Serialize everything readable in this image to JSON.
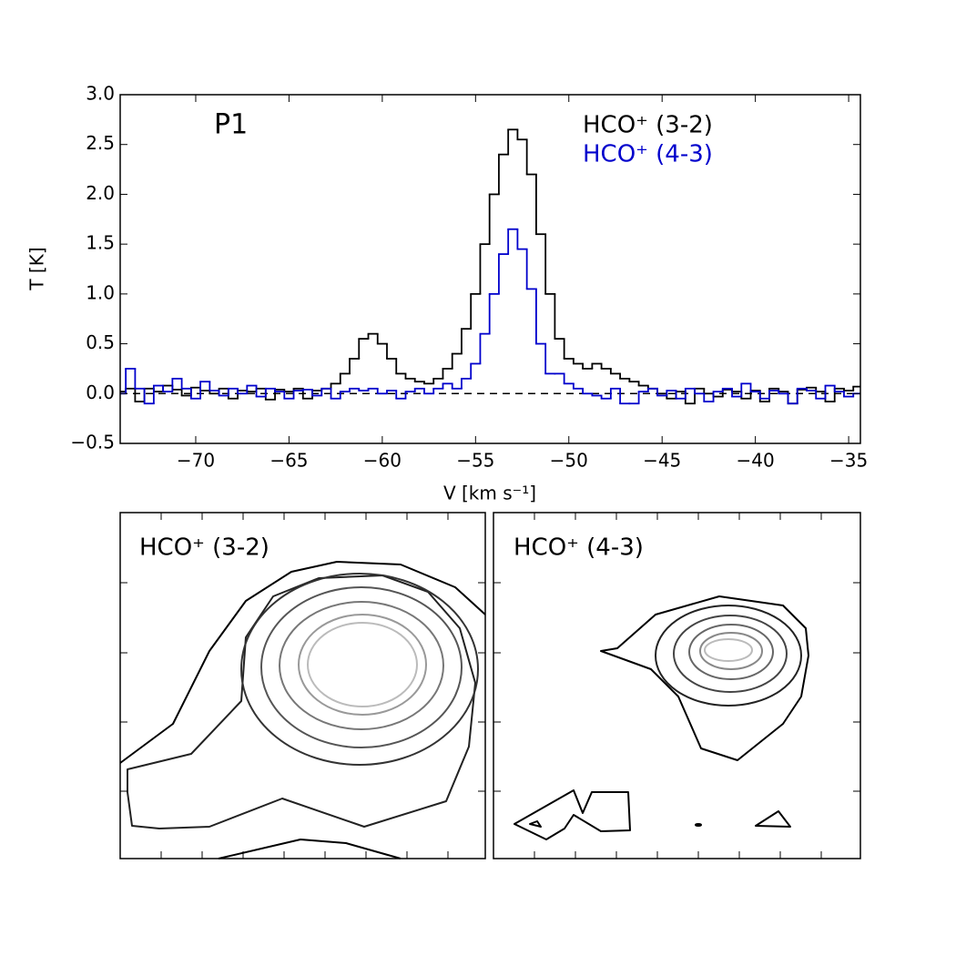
{
  "chart_data": [
    {
      "type": "step",
      "annotation": "P1",
      "xlabel": "V [km s⁻¹]",
      "ylabel": "T [K]",
      "xlim": [
        -74.05,
        -34.37
      ],
      "ylim": [
        -0.5,
        3.0
      ],
      "xticks": [
        {
          "value": -70,
          "label": "−70"
        },
        {
          "value": -65,
          "label": "−65"
        },
        {
          "value": -60,
          "label": "−60"
        },
        {
          "value": -55,
          "label": "−55"
        },
        {
          "value": -50,
          "label": "−50"
        },
        {
          "value": -45,
          "label": "−45"
        },
        {
          "value": -40,
          "label": "−40"
        },
        {
          "value": -35,
          "label": "−35"
        }
      ],
      "yticks": [
        {
          "value": -0.5,
          "label": "−0.5"
        },
        {
          "value": 0,
          "label": "0.0"
        },
        {
          "value": 0.5,
          "label": "0.5"
        },
        {
          "value": 1,
          "label": "1.0"
        },
        {
          "value": 1.5,
          "label": "1.5"
        },
        {
          "value": 2,
          "label": "2.0"
        },
        {
          "value": 2.5,
          "label": "2.5"
        },
        {
          "value": 3,
          "label": "3.0"
        }
      ],
      "reference_line": 0,
      "legend": "upper right",
      "x": [
        -74,
        -73.5,
        -73,
        -72.5,
        -72,
        -71.5,
        -71,
        -70.5,
        -70,
        -69.5,
        -69,
        -68.5,
        -68,
        -67.5,
        -67,
        -66.5,
        -66,
        -65.5,
        -65,
        -64.5,
        -64,
        -63.5,
        -63,
        -62.5,
        -62,
        -61.5,
        -61,
        -60.5,
        -60,
        -59.5,
        -59,
        -58.5,
        -58,
        -57.5,
        -57,
        -56.5,
        -56,
        -55.5,
        -55,
        -54.5,
        -54,
        -53.5,
        -53,
        -52.5,
        -52,
        -51.5,
        -51,
        -50.5,
        -50,
        -49.5,
        -49,
        -48.5,
        -48,
        -47.5,
        -47,
        -46.5,
        -46,
        -45.5,
        -45,
        -44.5,
        -44,
        -43.5,
        -43,
        -42.5,
        -42,
        -41.5,
        -41,
        -40.5,
        -40,
        -39.5,
        -39,
        -38.5,
        -38,
        -37.5,
        -37,
        -36.5,
        -36,
        -35.5,
        -35,
        -34.5
      ],
      "series": [
        {
          "name": "HCO⁺ (3-2)",
          "color": "#000000",
          "values": [
            0.02,
            0.05,
            -0.08,
            0.05,
            0.02,
            0.08,
            0.04,
            -0.02,
            0.06,
            0.03,
            0.0,
            0.05,
            -0.05,
            0.03,
            0.02,
            0.05,
            -0.06,
            0.04,
            0.02,
            0.05,
            -0.05,
            0.03,
            0.05,
            0.1,
            0.2,
            0.35,
            0.55,
            0.6,
            0.5,
            0.35,
            0.2,
            0.15,
            0.12,
            0.1,
            0.15,
            0.25,
            0.4,
            0.65,
            1.0,
            1.5,
            2.0,
            2.4,
            2.65,
            2.55,
            2.2,
            1.6,
            1.0,
            0.55,
            0.35,
            0.3,
            0.25,
            0.3,
            0.25,
            0.2,
            0.15,
            0.12,
            0.08,
            0.05,
            0.0,
            -0.05,
            0.02,
            -0.1,
            0.05,
            0.0,
            -0.03,
            0.04,
            0.02,
            -0.05,
            0.03,
            -0.08,
            0.05,
            0.02,
            -0.1,
            0.04,
            0.06,
            0.02,
            -0.08,
            0.05,
            0.03,
            0.07
          ]
        },
        {
          "name": "HCO⁺ (4-3)",
          "color": "#0000cc",
          "values": [
            0.0,
            0.25,
            0.05,
            -0.1,
            0.08,
            0.02,
            0.15,
            0.05,
            -0.05,
            0.12,
            0.03,
            -0.02,
            0.05,
            0.0,
            0.08,
            -0.03,
            0.05,
            0.02,
            -0.05,
            0.03,
            0.04,
            -0.02,
            0.05,
            -0.05,
            0.02,
            0.05,
            0.03,
            0.05,
            0.0,
            0.03,
            -0.05,
            0.02,
            0.05,
            0.0,
            0.05,
            0.1,
            0.05,
            0.15,
            0.3,
            0.6,
            1.0,
            1.4,
            1.65,
            1.45,
            1.05,
            0.5,
            0.2,
            0.2,
            0.1,
            0.05,
            0.0,
            -0.02,
            -0.05,
            0.05,
            -0.1,
            -0.1,
            0.02,
            0.05,
            -0.02,
            0.03,
            -0.05,
            0.05,
            0.0,
            -0.08,
            0.02,
            0.05,
            -0.03,
            0.1,
            0.02,
            -0.05,
            0.03,
            0.0,
            -0.1,
            0.05,
            0.03,
            -0.05,
            0.08,
            0.02,
            -0.03,
            0.0
          ]
        }
      ]
    },
    {
      "type": "contour",
      "title": "HCO⁺ (3-2)"
    },
    {
      "type": "contour",
      "title": "HCO⁺ (4-3)"
    }
  ]
}
